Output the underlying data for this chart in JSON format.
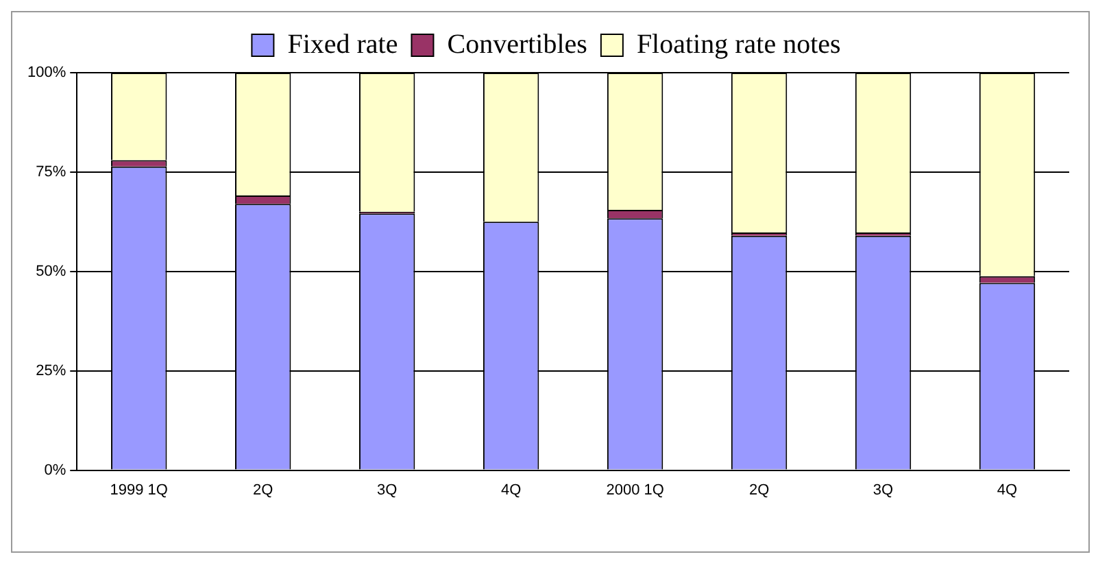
{
  "chart_data": {
    "type": "bar",
    "stacked": true,
    "categories": [
      "1999 1Q",
      "2Q",
      "3Q",
      "4Q",
      "2000 1Q",
      "2Q",
      "3Q",
      "4Q"
    ],
    "series": [
      {
        "name": "Fixed rate",
        "color": "#9999ff",
        "values": [
          76.4,
          67.0,
          64.6,
          62.5,
          63.4,
          59.0,
          59.0,
          47.1
        ]
      },
      {
        "name": "Convertibles",
        "color": "#993366",
        "values": [
          1.6,
          2.1,
          0.4,
          0,
          2.1,
          0.8,
          0.8,
          1.7
        ]
      },
      {
        "name": "Floating rate notes",
        "color": "#ffffcc",
        "values": [
          22.0,
          30.9,
          35.0,
          37.5,
          34.5,
          40.2,
          40.2,
          51.2
        ]
      }
    ],
    "ylim": [
      0,
      100
    ],
    "yticks": [
      {
        "value": 0,
        "label": "0%"
      },
      {
        "value": 25,
        "label": "25%"
      },
      {
        "value": 50,
        "label": "50%"
      },
      {
        "value": 75,
        "label": "75%"
      },
      {
        "value": 100,
        "label": "100%"
      }
    ],
    "grid": "y",
    "legend": "top"
  }
}
